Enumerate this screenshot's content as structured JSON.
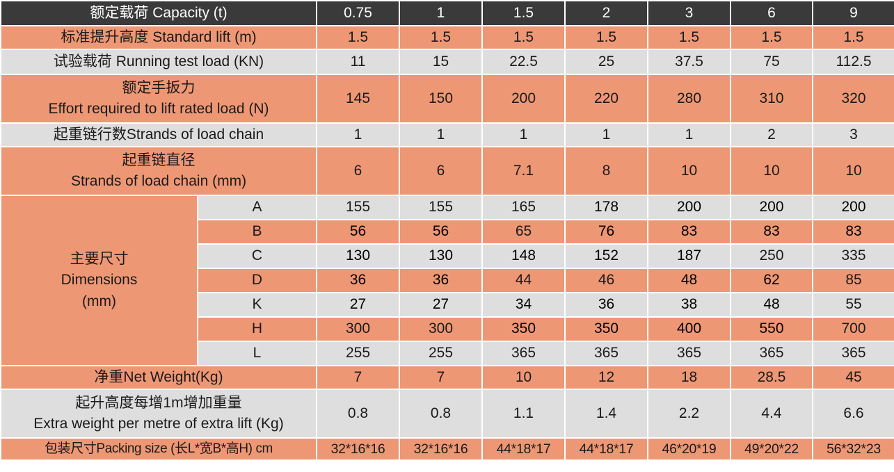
{
  "header": {
    "label": "额定载荷 Capacity (t)",
    "values": [
      "0.75",
      "1",
      "1.5",
      "2",
      "3",
      "6",
      "9"
    ]
  },
  "rows": {
    "standard_lift": {
      "label": "标准提升高度 Standard lift (m)",
      "values": [
        "1.5",
        "1.5",
        "1.5",
        "1.5",
        "1.5",
        "1.5",
        "1.5"
      ]
    },
    "running_test_load": {
      "label": "试验载荷 Running test load (KN)",
      "values": [
        "11",
        "15",
        "22.5",
        "25",
        "37.5",
        "75",
        "112.5"
      ]
    },
    "effort": {
      "label_cn": "额定手扳力",
      "label_en": "Effort required to lift rated load (N)",
      "values": [
        "145",
        "150",
        "200",
        "220",
        "280",
        "310",
        "320"
      ]
    },
    "strands": {
      "label": "起重链行数Strands of load chain",
      "values": [
        "1",
        "1",
        "1",
        "1",
        "1",
        "2",
        "3"
      ]
    },
    "chain_diameter": {
      "label_cn": "起重链直径",
      "label_en": "Strands of load chain (mm)",
      "values": [
        "6",
        "6",
        "7.1",
        "8",
        "10",
        "10",
        "10"
      ]
    },
    "dimensions": {
      "label_cn": "主要尺寸",
      "label_en": "Dimensions",
      "label_unit": "(mm)",
      "items": [
        {
          "key": "A",
          "values": [
            "155",
            "155",
            "165",
            "178",
            "200",
            "200",
            "200"
          ]
        },
        {
          "key": "B",
          "values": [
            "56",
            "56",
            "65",
            "76",
            "83",
            "83",
            "83"
          ]
        },
        {
          "key": "C",
          "values": [
            "130",
            "130",
            "148",
            "152",
            "187",
            "250",
            "335"
          ]
        },
        {
          "key": "D",
          "values": [
            "36",
            "36",
            "44",
            "46",
            "48",
            "62",
            "85"
          ]
        },
        {
          "key": "K",
          "values": [
            "27",
            "27",
            "34",
            "36",
            "38",
            "48",
            "55"
          ]
        },
        {
          "key": "H",
          "values": [
            "300",
            "300",
            "350",
            "350",
            "400",
            "550",
            "700"
          ]
        },
        {
          "key": "L",
          "values": [
            "255",
            "255",
            "365",
            "365",
            "365",
            "365",
            "365"
          ]
        }
      ]
    },
    "net_weight": {
      "label": "净重Net Weight(Kg)",
      "values": [
        "7",
        "7",
        "10",
        "12",
        "18",
        "28.5",
        "45"
      ]
    },
    "extra_weight": {
      "label_cn": "起升高度每增1m增加重量",
      "label_en": "Extra weight per metre of extra lift (Kg)",
      "values": [
        "0.8",
        "0.8",
        "1.1",
        "1.4",
        "2.2",
        "4.4",
        "6.6"
      ]
    },
    "packing_size": {
      "label": "包装尺寸Packing size (长L*宽B*高H) cm",
      "values": [
        "32*16*16",
        "32*16*16",
        "44*18*17",
        "44*18*17",
        "46*20*19",
        "49*20*22",
        "56*32*23"
      ]
    }
  },
  "colors": {
    "header_bg": "#3a3a3a",
    "orange_row": "#ee9774",
    "grey_row": "#dedede",
    "border": "#ffffff"
  }
}
